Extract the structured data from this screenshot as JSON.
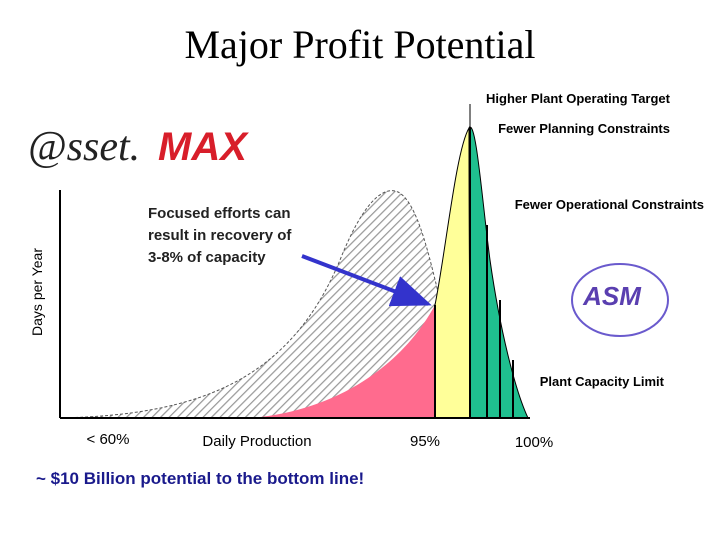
{
  "title": "Major Profit Potential",
  "logo": {
    "prefix": "@sset.",
    "suffix": "MAX"
  },
  "asm_logo": "ASM",
  "annotations": {
    "target": "Higher Plant Operating Target",
    "planning": "Fewer Planning Constraints",
    "operational": "Fewer Operational Constraints",
    "capacity": "Plant Capacity  Limit"
  },
  "callout": [
    "Focused efforts can",
    "result in recovery of",
    "3-8% of capacity"
  ],
  "axes": {
    "y_label": "Days per Year",
    "x_labels": [
      "< 60%",
      "Daily Production",
      "95%",
      "100%"
    ]
  },
  "footer": "~ $10 Billion potential to the bottom line!"
}
